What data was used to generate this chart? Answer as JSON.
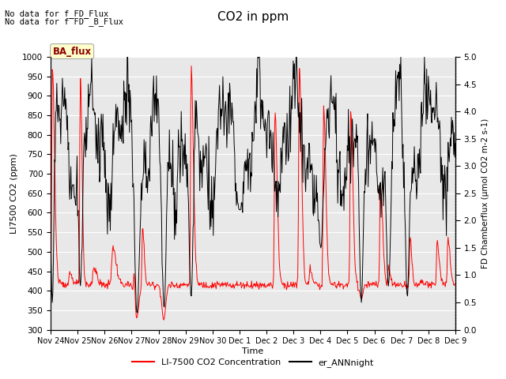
{
  "title": "CO2 in ppm",
  "xlabel": "Time",
  "ylabel_left": "LI7500 CO2 (ppm)",
  "ylabel_right": "FD Chamberflux (μmol CO2 m-2 s-1)",
  "ylim_left": [
    300,
    1000
  ],
  "ylim_right": [
    0.0,
    5.0
  ],
  "text_no_data_1": "No data for f_FD_Flux",
  "text_no_data_2": "No data for f̅FD̅_B_Flux",
  "ba_flux_label": "BA_flux",
  "legend_red": "LI-7500 CO2 Concentration",
  "legend_black": "er_ANNnight",
  "plot_bg_color": "#e8e8e8",
  "grid_color": "#ffffff",
  "tick_labels": [
    "Nov 24",
    "Nov 25",
    "Nov 26",
    "Nov 27",
    "Nov 28",
    "Nov 29",
    "Nov 30",
    "Dec 1",
    "Dec 2",
    "Dec 3",
    "Dec 4",
    "Dec 5",
    "Dec 6",
    "Dec 7",
    "Dec 8",
    "Dec 9"
  ],
  "n_points": 720,
  "yticks_left": [
    300,
    350,
    400,
    450,
    500,
    550,
    600,
    650,
    700,
    750,
    800,
    850,
    900,
    950,
    1000
  ],
  "yticks_right": [
    0.0,
    0.5,
    1.0,
    1.5,
    2.0,
    2.5,
    3.0,
    3.5,
    4.0,
    4.5,
    5.0
  ]
}
